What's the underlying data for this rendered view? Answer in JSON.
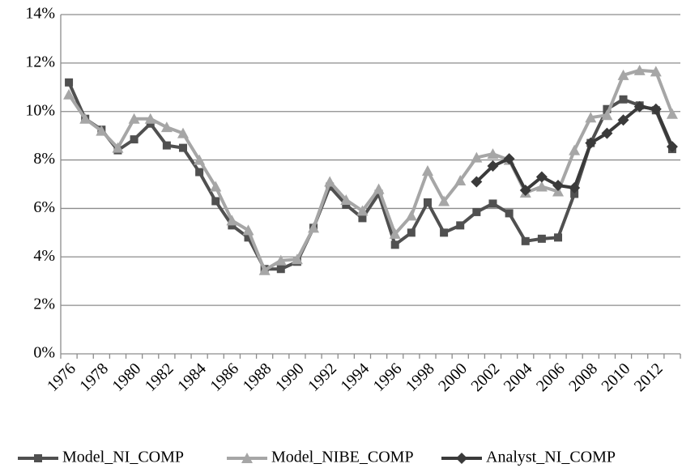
{
  "chart_data": {
    "type": "line",
    "categories": [
      "1976",
      null,
      "1978",
      null,
      "1980",
      null,
      "1982",
      null,
      "1984",
      null,
      "1986",
      null,
      "1988",
      null,
      "1990",
      null,
      "1992",
      null,
      "1994",
      null,
      "1996",
      null,
      "1998",
      null,
      "2000",
      null,
      "2002",
      null,
      "2004",
      null,
      "2006",
      null,
      "2008",
      null,
      "2010",
      null,
      "2012",
      null
    ],
    "series": [
      {
        "name": "Model_NI_COMP",
        "color": "#505050",
        "marker": "square",
        "values": [
          11.2,
          9.7,
          9.25,
          8.4,
          8.85,
          9.5,
          8.6,
          8.5,
          7.5,
          6.3,
          5.3,
          4.8,
          3.5,
          3.5,
          3.8,
          5.2,
          6.9,
          6.15,
          5.6,
          6.6,
          4.5,
          5.0,
          6.25,
          5.0,
          5.3,
          5.85,
          6.2,
          5.8,
          4.65,
          4.75,
          4.8,
          6.6,
          8.7,
          10.1,
          10.5,
          10.25,
          10.05,
          8.45
        ]
      },
      {
        "name": "Model_NIBE_COMP",
        "color": "#a6a6a6",
        "marker": "triangle",
        "values": [
          10.7,
          9.7,
          9.2,
          8.5,
          9.7,
          9.7,
          9.35,
          9.1,
          8.0,
          6.9,
          5.5,
          5.1,
          3.45,
          3.85,
          3.9,
          5.2,
          7.1,
          6.35,
          5.9,
          6.8,
          4.95,
          5.7,
          7.55,
          6.3,
          7.15,
          8.1,
          8.25,
          8.0,
          6.65,
          6.9,
          6.7,
          8.4,
          9.75,
          9.85,
          11.5,
          11.7,
          11.65,
          9.9
        ]
      },
      {
        "name": "Analyst_NI_COMP",
        "color": "#3a3a3a",
        "marker": "diamond",
        "values": [
          null,
          null,
          null,
          null,
          null,
          null,
          null,
          null,
          null,
          null,
          null,
          null,
          null,
          null,
          null,
          null,
          null,
          null,
          null,
          null,
          null,
          null,
          null,
          null,
          null,
          7.1,
          7.75,
          8.05,
          6.75,
          7.3,
          6.95,
          6.85,
          8.7,
          9.1,
          9.65,
          10.2,
          10.1,
          8.55
        ]
      }
    ],
    "ylim": [
      0,
      14
    ],
    "yticks": [
      {
        "value": 0,
        "label": "0%"
      },
      {
        "value": 2,
        "label": "2%"
      },
      {
        "value": 4,
        "label": "4%"
      },
      {
        "value": 6,
        "label": "6%"
      },
      {
        "value": 8,
        "label": "8%"
      },
      {
        "value": 10,
        "label": "10%"
      },
      {
        "value": 12,
        "label": "12%"
      },
      {
        "value": 14,
        "label": "14%"
      }
    ],
    "grid": true,
    "legend": "bottom"
  }
}
